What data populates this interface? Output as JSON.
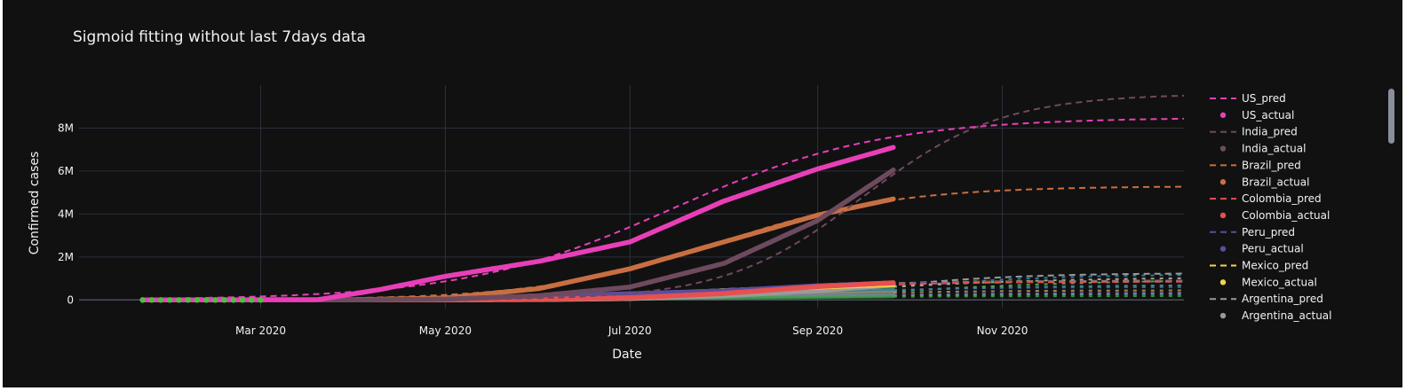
{
  "chart_data": {
    "type": "line",
    "title": "Sigmoid fitting without last 7days data",
    "xlabel": "Date",
    "ylabel": "Confirmed cases",
    "x_range": [
      "2020-01-01",
      "2020-12-31"
    ],
    "x_actual_range": [
      "2020-01-22",
      "2020-09-26"
    ],
    "x_pred_range": [
      "2020-01-22",
      "2020-12-31"
    ],
    "ylim": [
      -400000,
      10000000
    ],
    "x_ticks": [
      {
        "date": "2020-03-01",
        "label": "Mar 2020"
      },
      {
        "date": "2020-05-01",
        "label": "May 2020"
      },
      {
        "date": "2020-07-01",
        "label": "Jul 2020"
      },
      {
        "date": "2020-09-01",
        "label": "Sep 2020"
      },
      {
        "date": "2020-11-01",
        "label": "Nov 2020"
      }
    ],
    "y_ticks": [
      {
        "value": 0,
        "label": "0"
      },
      {
        "value": 2000000,
        "label": "2M"
      },
      {
        "value": 4000000,
        "label": "4M"
      },
      {
        "value": 6000000,
        "label": "6M"
      },
      {
        "value": 8000000,
        "label": "8M"
      }
    ],
    "grid": true,
    "legend_position": "right",
    "series": [
      {
        "name": "US_pred",
        "kind": "pred",
        "color": "#e83fb8",
        "L": 8500000,
        "mid": "2020-07-15",
        "k": 0.029
      },
      {
        "name": "US_actual",
        "kind": "actual",
        "color": "#e83fb8",
        "points": [
          [
            "2020-01-22",
            0
          ],
          [
            "2020-03-20",
            15000
          ],
          [
            "2020-04-10",
            500000
          ],
          [
            "2020-05-01",
            1100000
          ],
          [
            "2020-06-01",
            1800000
          ],
          [
            "2020-07-01",
            2700000
          ],
          [
            "2020-08-01",
            4600000
          ],
          [
            "2020-09-01",
            6100000
          ],
          [
            "2020-09-26",
            7100000
          ]
        ]
      },
      {
        "name": "India_pred",
        "kind": "pred",
        "color": "#6e4a5e",
        "L": 9600000,
        "mid": "2020-09-16",
        "k": 0.044
      },
      {
        "name": "India_actual",
        "kind": "actual",
        "color": "#6e4a5e",
        "points": [
          [
            "2020-01-22",
            0
          ],
          [
            "2020-04-01",
            2000
          ],
          [
            "2020-05-01",
            35000
          ],
          [
            "2020-06-01",
            200000
          ],
          [
            "2020-07-01",
            600000
          ],
          [
            "2020-08-01",
            1700000
          ],
          [
            "2020-09-01",
            3700000
          ],
          [
            "2020-09-26",
            6050000
          ]
        ]
      },
      {
        "name": "Brazil_pred",
        "kind": "pred",
        "color": "#c86f42",
        "L": 5300000,
        "mid": "2020-07-30",
        "k": 0.034
      },
      {
        "name": "Brazil_actual",
        "kind": "actual",
        "color": "#c86f42",
        "points": [
          [
            "2020-01-22",
            0
          ],
          [
            "2020-04-01",
            6000
          ],
          [
            "2020-05-01",
            90000
          ],
          [
            "2020-06-01",
            530000
          ],
          [
            "2020-07-01",
            1450000
          ],
          [
            "2020-08-01",
            2700000
          ],
          [
            "2020-09-01",
            3950000
          ],
          [
            "2020-09-26",
            4700000
          ]
        ]
      },
      {
        "name": "Colombia_pred",
        "kind": "pred",
        "color": "#e8504f",
        "L": 850000,
        "mid": "2020-08-15",
        "k": 0.04
      },
      {
        "name": "Colombia_actual",
        "kind": "actual",
        "color": "#e8504f",
        "points": [
          [
            "2020-01-22",
            0
          ],
          [
            "2020-05-01",
            7000
          ],
          [
            "2020-06-01",
            30000
          ],
          [
            "2020-07-01",
            100000
          ],
          [
            "2020-08-01",
            300000
          ],
          [
            "2020-09-01",
            620000
          ],
          [
            "2020-09-26",
            800000
          ]
        ]
      },
      {
        "name": "Peru_pred",
        "kind": "pred",
        "color": "#5c4d9e",
        "L": 880000,
        "mid": "2020-08-01",
        "k": 0.035
      },
      {
        "name": "Peru_actual",
        "kind": "actual",
        "color": "#5c4d9e",
        "points": [
          [
            "2020-01-22",
            0
          ],
          [
            "2020-04-01",
            1000
          ],
          [
            "2020-05-01",
            40000
          ],
          [
            "2020-06-01",
            170000
          ],
          [
            "2020-07-01",
            290000
          ],
          [
            "2020-08-01",
            420000
          ],
          [
            "2020-09-01",
            660000
          ],
          [
            "2020-09-26",
            790000
          ]
        ]
      },
      {
        "name": "Mexico_pred",
        "kind": "pred",
        "color": "#f5d547",
        "L": 900000,
        "mid": "2020-07-25",
        "k": 0.03
      },
      {
        "name": "Mexico_actual",
        "kind": "actual",
        "color": "#f5d547",
        "points": [
          [
            "2020-01-22",
            0
          ],
          [
            "2020-04-01",
            1500
          ],
          [
            "2020-05-01",
            20000
          ],
          [
            "2020-06-01",
            95000
          ],
          [
            "2020-07-01",
            230000
          ],
          [
            "2020-08-01",
            430000
          ],
          [
            "2020-09-01",
            600000
          ],
          [
            "2020-09-26",
            720000
          ]
        ]
      },
      {
        "name": "Argentina_pred",
        "kind": "pred",
        "color": "#9a9a9a",
        "L": 1250000,
        "mid": "2020-09-20",
        "k": 0.04
      },
      {
        "name": "Argentina_actual",
        "kind": "actual",
        "color": "#9a9a9a",
        "points": [
          [
            "2020-01-22",
            0
          ],
          [
            "2020-05-01",
            4000
          ],
          [
            "2020-06-01",
            17000
          ],
          [
            "2020-07-01",
            65000
          ],
          [
            "2020-08-01",
            200000
          ],
          [
            "2020-09-01",
            430000
          ],
          [
            "2020-09-26",
            700000
          ]
        ]
      }
    ],
    "background_series": [
      {
        "color": "#2f8fb5",
        "L": 1200000,
        "mid": "2020-09-25",
        "k": 0.035,
        "actual_end": 650000
      },
      {
        "color": "#5fbf5f",
        "L": 950000,
        "mid": "2020-10-05",
        "k": 0.03,
        "actual_end": 450000
      },
      {
        "color": "#3fae8a",
        "L": 700000,
        "mid": "2020-09-10",
        "k": 0.03,
        "actual_end": 500000
      },
      {
        "color": "#c0c0a0",
        "L": 1050000,
        "mid": "2020-09-15",
        "k": 0.03,
        "actual_end": 680000
      },
      {
        "color": "#4a6fb5",
        "L": 600000,
        "mid": "2020-08-20",
        "k": 0.035,
        "actual_end": 420000
      },
      {
        "color": "#b5a25f",
        "L": 450000,
        "mid": "2020-08-25",
        "k": 0.035,
        "actual_end": 340000
      },
      {
        "color": "#8f5fb5",
        "L": 350000,
        "mid": "2020-08-30",
        "k": 0.03,
        "actual_end": 250000
      },
      {
        "color": "#5fb5a2",
        "L": 280000,
        "mid": "2020-09-01",
        "k": 0.03,
        "actual_end": 200000
      },
      {
        "color": "#3aa63a",
        "L": 180000,
        "mid": "2020-08-10",
        "k": 0.03,
        "actual_end": 160000
      }
    ]
  }
}
